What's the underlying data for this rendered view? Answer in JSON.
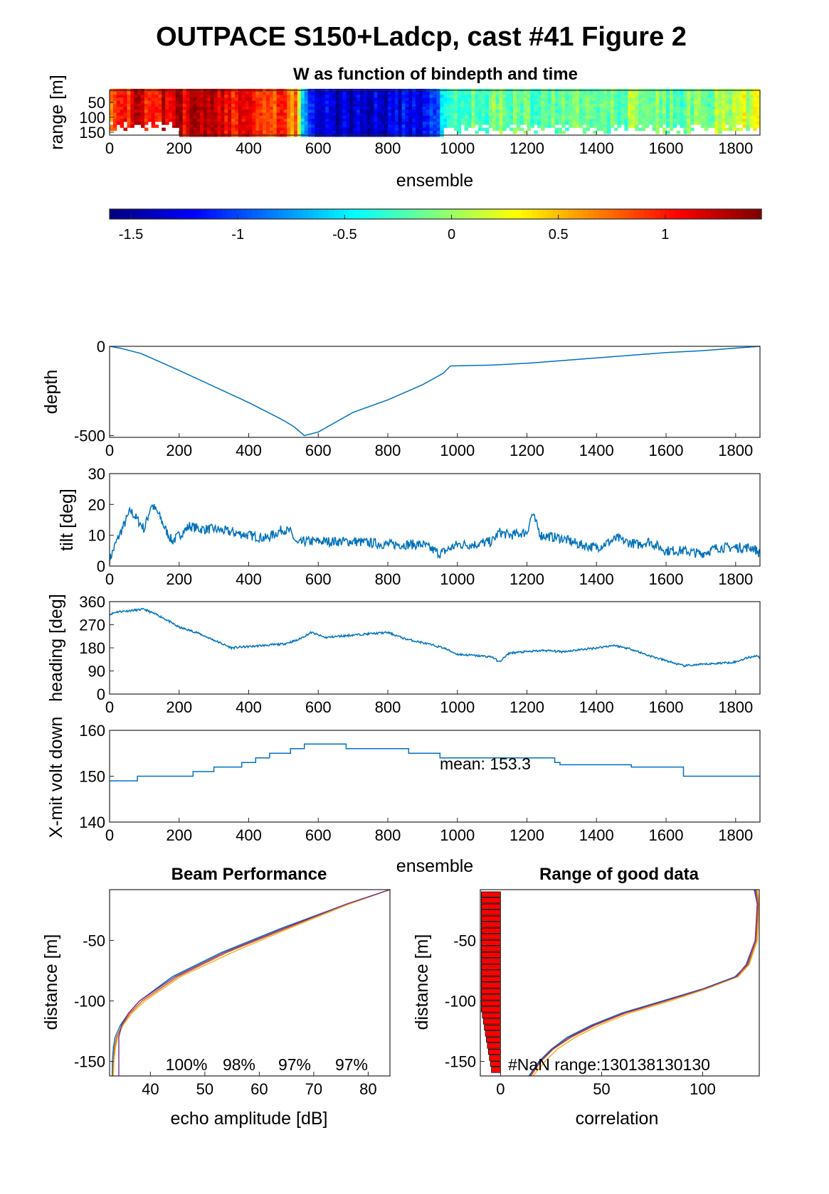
{
  "figure_title": "OUTPACE S150+Ladcp, cast #41 Figure 2",
  "colors": {
    "series_line": "#0072BD",
    "beam_colors": [
      "#0072BD",
      "#D95319",
      "#EDB120",
      "#7E2F8E"
    ],
    "nan_bar": "#ff0000"
  },
  "chart_data": [
    {
      "id": "w-panel",
      "type": "heatmap",
      "title": "W as function of bindepth and time",
      "xlabel": "ensemble",
      "ylabel": "range [m]",
      "xlim": [
        0,
        1870
      ],
      "ylim": [
        160,
        10
      ],
      "x_ticks": [
        "0",
        "200",
        "400",
        "600",
        "800",
        "1000",
        "1200",
        "1400",
        "1600",
        "1800"
      ],
      "y_ticks": [
        "50",
        "100",
        "150"
      ],
      "colormap": "jet",
      "clim": [
        -1.6,
        1.45
      ],
      "colorbar_ticks": [
        "-1.5",
        "-1",
        "-0.5",
        "0",
        "0.5",
        "1"
      ],
      "w_profile": {
        "ensemble": [
          0,
          90,
          180,
          300,
          420,
          500,
          540,
          560,
          620,
          700,
          800,
          880,
          940,
          980,
          1040,
          1100,
          1200,
          1300,
          1400,
          1500,
          1600,
          1700,
          1800,
          1870
        ],
        "w": [
          0.9,
          1.1,
          1.2,
          1.15,
          1.05,
          0.9,
          0.6,
          -0.9,
          -1.35,
          -1.4,
          -1.35,
          -1.25,
          -1.1,
          -0.2,
          -0.25,
          -0.2,
          -0.15,
          -0.2,
          -0.15,
          -0.1,
          -0.15,
          -0.1,
          0.1,
          0.2
        ]
      }
    },
    {
      "id": "depth-panel",
      "type": "line",
      "ylabel": "depth",
      "xlim": [
        0,
        1870
      ],
      "ylim": [
        -510,
        0
      ],
      "x_ticks": [
        "0",
        "200",
        "400",
        "600",
        "800",
        "1000",
        "1200",
        "1400",
        "1600",
        "1800"
      ],
      "y_ticks": [
        "0",
        "-500"
      ],
      "x": [
        0,
        30,
        60,
        90,
        200,
        300,
        400,
        500,
        530,
        560,
        600,
        700,
        800,
        900,
        960,
        980,
        1100,
        1200,
        1300,
        1400,
        1500,
        1600,
        1700,
        1800,
        1870
      ],
      "y": [
        0,
        -10,
        -25,
        -40,
        -135,
        -225,
        -315,
        -415,
        -450,
        -500,
        -480,
        -370,
        -300,
        -215,
        -150,
        -110,
        -105,
        -95,
        -80,
        -65,
        -50,
        -35,
        -25,
        -10,
        0
      ]
    },
    {
      "id": "tilt-panel",
      "type": "line",
      "ylabel": "tilt [deg]",
      "xlim": [
        0,
        1870
      ],
      "ylim": [
        0,
        30
      ],
      "x_ticks": [
        "0",
        "200",
        "400",
        "600",
        "800",
        "1000",
        "1200",
        "1400",
        "1600",
        "1800"
      ],
      "y_ticks": [
        "0",
        "10",
        "20",
        "30"
      ],
      "x": [
        0,
        10,
        20,
        40,
        60,
        80,
        100,
        120,
        140,
        160,
        180,
        200,
        230,
        260,
        300,
        350,
        400,
        450,
        500,
        520,
        540,
        560,
        600,
        700,
        800,
        900,
        950,
        1000,
        1050,
        1100,
        1120,
        1150,
        1200,
        1215,
        1240,
        1300,
        1350,
        1400,
        1460,
        1480,
        1520,
        1550,
        1600,
        1650,
        1700,
        1750,
        1800,
        1850,
        1870
      ],
      "y": [
        2,
        5,
        8,
        13,
        18,
        15,
        12,
        20,
        17,
        12,
        8,
        10,
        13,
        12,
        12,
        11,
        10,
        9,
        12,
        11,
        7,
        8,
        8,
        8,
        7,
        7,
        4,
        7,
        7,
        8,
        11,
        10,
        11,
        17,
        10,
        9,
        7,
        6,
        9,
        8,
        7,
        8,
        5,
        5,
        4,
        6,
        6,
        6,
        4
      ]
    },
    {
      "id": "heading-panel",
      "type": "line",
      "ylabel": "heading [deg]",
      "xlim": [
        0,
        1870
      ],
      "ylim": [
        0,
        360
      ],
      "x_ticks": [
        "0",
        "200",
        "400",
        "600",
        "800",
        "1000",
        "1200",
        "1400",
        "1600",
        "1800"
      ],
      "y_ticks": [
        "0",
        "90",
        "180",
        "270",
        "360"
      ],
      "x": [
        0,
        20,
        60,
        100,
        150,
        200,
        250,
        300,
        350,
        400,
        450,
        500,
        540,
        580,
        620,
        700,
        750,
        800,
        850,
        900,
        960,
        1000,
        1050,
        1100,
        1120,
        1150,
        1200,
        1250,
        1300,
        1400,
        1450,
        1500,
        1550,
        1600,
        1650,
        1700,
        1750,
        1800,
        1830,
        1860,
        1870
      ],
      "y": [
        310,
        320,
        325,
        330,
        300,
        260,
        240,
        210,
        180,
        185,
        190,
        195,
        210,
        240,
        220,
        230,
        235,
        240,
        215,
        200,
        180,
        155,
        150,
        145,
        125,
        160,
        165,
        170,
        165,
        180,
        190,
        175,
        150,
        130,
        110,
        115,
        120,
        125,
        140,
        150,
        140
      ]
    },
    {
      "id": "voltage-panel",
      "type": "line",
      "ylabel": "X-mit volt down",
      "xlabel": "ensemble",
      "xlim": [
        0,
        1870
      ],
      "ylim": [
        140,
        160
      ],
      "x_ticks": [
        "0",
        "200",
        "400",
        "600",
        "800",
        "1000",
        "1200",
        "1400",
        "1600",
        "1800"
      ],
      "y_ticks": [
        "140",
        "150",
        "160"
      ],
      "annotation": "mean: 153.3",
      "steps": [
        [
          0,
          149
        ],
        [
          80,
          150
        ],
        [
          240,
          151
        ],
        [
          300,
          152
        ],
        [
          380,
          153
        ],
        [
          420,
          154
        ],
        [
          460,
          155
        ],
        [
          520,
          156
        ],
        [
          560,
          157
        ],
        [
          680,
          156
        ],
        [
          860,
          155
        ],
        [
          950,
          154
        ],
        [
          1280,
          153
        ],
        [
          1295,
          152.5
        ],
        [
          1500,
          152
        ],
        [
          1650,
          150
        ]
      ]
    },
    {
      "id": "beam-panel",
      "type": "line",
      "title": "Beam Performance",
      "xlabel": "echo amplitude [dB]",
      "ylabel": "distance [m]",
      "xlim": [
        32.5,
        84
      ],
      "ylim": [
        -162,
        -8
      ],
      "x_ticks": [
        "40",
        "50",
        "60",
        "70",
        "80"
      ],
      "y_ticks": [
        "-50",
        "-100",
        "-150"
      ],
      "annotations": [
        "100%",
        "98%",
        "97%",
        "97%"
      ],
      "series": [
        {
          "y": [
            -8,
            -20,
            -40,
            -60,
            -80,
            -100,
            -110,
            -120,
            -130,
            -138,
            -150,
            -162
          ],
          "x": [
            84,
            76,
            64,
            53,
            44,
            38,
            36,
            34.5,
            33.5,
            33.2,
            33,
            33
          ]
        },
        {
          "y": [
            -8,
            -20,
            -40,
            -60,
            -80,
            -100,
            -110,
            -120,
            -130,
            -138,
            -150,
            -162
          ],
          "x": [
            84,
            76,
            65,
            54,
            45,
            38.5,
            36.3,
            34.8,
            33.8,
            33.4,
            33.2,
            33.1
          ]
        },
        {
          "y": [
            -8,
            -20,
            -40,
            -60,
            -80,
            -100,
            -110,
            -120,
            -130,
            -138,
            -150,
            -162
          ],
          "x": [
            84,
            76.5,
            65.5,
            55,
            45.5,
            39,
            36.6,
            35,
            34,
            33.6,
            33.3,
            33.2
          ]
        },
        {
          "y": [
            -8,
            -20,
            -40,
            -60,
            -80,
            -100,
            -110,
            -120,
            -130,
            -138,
            -150,
            -162
          ],
          "x": [
            84,
            76,
            64.5,
            53.5,
            44.5,
            38,
            36,
            34.7,
            34.2,
            34.2,
            34.2,
            34.2
          ]
        }
      ]
    },
    {
      "id": "range-panel",
      "type": "line",
      "title": "Range of good data",
      "xlabel": "correlation",
      "ylabel": "distance [m]",
      "xlim": [
        -10,
        128
      ],
      "ylim": [
        -162,
        -8
      ],
      "x_ticks": [
        "0",
        "50",
        "100"
      ],
      "y_ticks": [
        "-50",
        "-100",
        "-150"
      ],
      "annotation": "#NaN range:130138130130",
      "nan_bars": {
        "y": [
          -12,
          -17,
          -22,
          -27,
          -32,
          -37,
          -42,
          -47,
          -52,
          -57,
          -62,
          -67,
          -72,
          -77,
          -82,
          -87,
          -92,
          -97,
          -102,
          -107,
          -112,
          -117,
          -122,
          -127,
          -132,
          -137,
          -142,
          -147,
          -152,
          -157
        ],
        "value": [
          -9.5,
          -9.5,
          -9.5,
          -9.5,
          -9.5,
          -9.5,
          -9.5,
          -9.5,
          -9.5,
          -9.5,
          -9.5,
          -9.5,
          -9.5,
          -9.5,
          -9.5,
          -9.5,
          -9.5,
          -9.5,
          -9.5,
          -9.5,
          -9,
          -8.5,
          -8,
          -7.5,
          -7,
          -6.5,
          -6,
          -5.5,
          -5,
          -4.5
        ]
      },
      "series": [
        {
          "y": [
            -8,
            -20,
            -50,
            -70,
            -80,
            -90,
            -100,
            -110,
            -120,
            -130,
            -140,
            -150,
            -162
          ],
          "x": [
            126,
            127,
            126,
            122,
            116,
            100,
            80,
            60,
            45,
            33,
            25,
            19,
            14
          ]
        },
        {
          "y": [
            -8,
            -20,
            -50,
            -70,
            -80,
            -90,
            -100,
            -110,
            -120,
            -130,
            -140,
            -150,
            -162
          ],
          "x": [
            126.5,
            127.5,
            126.5,
            122.5,
            117,
            101,
            82,
            62,
            47,
            35,
            26,
            20,
            15
          ]
        },
        {
          "y": [
            -8,
            -20,
            -50,
            -70,
            -80,
            -90,
            -100,
            -110,
            -120,
            -130,
            -140,
            -150,
            -162
          ],
          "x": [
            127,
            128,
            127,
            123,
            117.5,
            102,
            84,
            64,
            49,
            37,
            28,
            22,
            16
          ]
        },
        {
          "y": [
            -8,
            -20,
            -50,
            -70,
            -80,
            -90,
            -100,
            -110,
            -120,
            -130,
            -140,
            -150,
            -162
          ],
          "x": [
            125.5,
            127,
            126,
            121.5,
            116.5,
            100.5,
            81,
            61,
            46,
            34,
            25.5,
            19.5,
            14.5
          ]
        }
      ]
    }
  ],
  "heading_label_extra": "heading [deg]"
}
